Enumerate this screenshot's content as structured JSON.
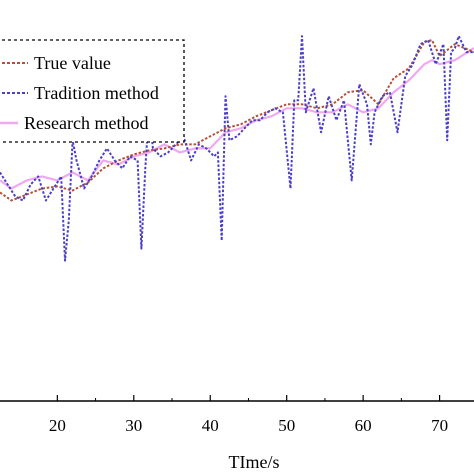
{
  "chart_data": {
    "type": "line",
    "xlabel": "TIme/s",
    "ylabel": "",
    "xlim": [
      12.5,
      74.5
    ],
    "ylim": [
      0,
      10
    ],
    "x_ticks": [
      20,
      30,
      40,
      50,
      60,
      70
    ],
    "x_tick_labels": [
      "20",
      "30",
      "40",
      "50",
      "60",
      "70"
    ],
    "grid": false,
    "legend": {
      "position": "top-left",
      "border": "dashed",
      "entries": [
        "True value",
        "Tradition method",
        "Research method"
      ]
    },
    "series": [
      {
        "name": "True value",
        "color": "#b5503a",
        "style": "dotted",
        "x": [
          12.5,
          14,
          16,
          18,
          20,
          22,
          24,
          26,
          28,
          30,
          32,
          34,
          36,
          38,
          40,
          42,
          44,
          46,
          48,
          50,
          52,
          54,
          56,
          58,
          60,
          62,
          64,
          66,
          68,
          69,
          70,
          72,
          74.5
        ],
        "y": [
          5.2,
          5.0,
          5.15,
          5.3,
          5.35,
          5.25,
          5.45,
          5.8,
          6.0,
          6.15,
          6.25,
          6.3,
          6.4,
          6.4,
          6.6,
          6.8,
          6.9,
          7.1,
          7.25,
          7.4,
          7.4,
          7.3,
          7.4,
          7.7,
          7.75,
          7.4,
          8.05,
          8.3,
          8.95,
          9.0,
          8.6,
          8.9,
          8.7
        ]
      },
      {
        "name": "Tradition method",
        "color": "#4a3fc8",
        "style": "dotted",
        "x": [
          12.5,
          13.5,
          14.5,
          15.5,
          16.5,
          17.5,
          18.5,
          19.5,
          20.5,
          21,
          21.5,
          22,
          22.5,
          23.5,
          24.5,
          25.5,
          26.5,
          27.5,
          28.5,
          29.5,
          30.5,
          31,
          31.5,
          32,
          32.5,
          33.5,
          34.5,
          35.5,
          36.5,
          37.5,
          38.5,
          39.5,
          40.5,
          41,
          41.5,
          42,
          42.5,
          43.5,
          44.5,
          45.5,
          46.5,
          47.5,
          48.5,
          49.5,
          50.5,
          51,
          51.5,
          52,
          52.5,
          53.5,
          54.5,
          55.5,
          56.5,
          57.5,
          58.5,
          59.5,
          60.5,
          61,
          61.5,
          62.5,
          63.5,
          64.5,
          65.5,
          66.5,
          67.5,
          68.5,
          69.5,
          70.5,
          71,
          71.5,
          72,
          72.5,
          73.5,
          74.5
        ],
        "y": [
          5.7,
          5.4,
          5.1,
          5.0,
          5.4,
          5.6,
          5.0,
          5.3,
          5.6,
          3.5,
          4.5,
          6.5,
          6.0,
          5.3,
          5.6,
          6.0,
          6.3,
          6.0,
          5.8,
          6.1,
          6.0,
          3.8,
          5.8,
          7.3,
          6.3,
          6.1,
          6.2,
          6.4,
          6.6,
          6.0,
          6.4,
          6.3,
          6.1,
          6.2,
          4.0,
          7.6,
          6.5,
          6.6,
          6.8,
          7.0,
          7.0,
          7.2,
          7.3,
          7.2,
          5.3,
          7.5,
          7.5,
          9.1,
          7.2,
          7.8,
          6.7,
          7.6,
          7.0,
          7.5,
          5.5,
          7.9,
          7.4,
          6.4,
          7.2,
          7.6,
          7.7,
          6.7,
          8.1,
          8.4,
          8.9,
          9.0,
          8.4,
          8.9,
          6.5,
          8.7,
          8.8,
          9.1,
          8.7,
          8.7
        ]
      },
      {
        "name": "Research method",
        "color": "#f0a8f0",
        "style": "solid",
        "x": [
          12.5,
          14,
          16,
          18,
          20,
          22,
          24,
          26,
          28,
          30,
          32,
          34,
          36,
          38,
          40,
          42,
          44,
          46,
          48,
          50,
          52,
          54,
          56,
          58,
          60,
          62,
          64,
          66,
          68,
          69,
          70,
          72,
          74.5
        ],
        "y": [
          5.5,
          5.3,
          5.5,
          5.6,
          5.5,
          5.7,
          5.5,
          6.0,
          5.9,
          6.1,
          6.2,
          6.4,
          6.2,
          6.3,
          6.3,
          6.7,
          6.8,
          7.0,
          7.1,
          7.3,
          7.3,
          7.2,
          7.2,
          7.4,
          7.2,
          7.3,
          7.7,
          8.0,
          8.4,
          8.5,
          8.4,
          8.5,
          8.8
        ]
      }
    ]
  }
}
